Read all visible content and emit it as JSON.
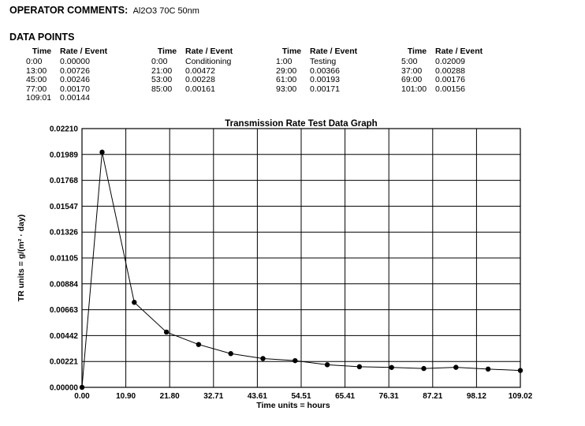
{
  "operator": {
    "label": "OPERATOR COMMENTS:",
    "value": "Al2O3  70C 50nm"
  },
  "data_points": {
    "title": "DATA POINTS",
    "headers": {
      "time": "Time",
      "rate": "Rate / Event"
    },
    "columns": [
      [
        {
          "time": "0:00",
          "rate": "0.00000"
        },
        {
          "time": "13:00",
          "rate": "0.00726"
        },
        {
          "time": "45:00",
          "rate": "0.00246"
        },
        {
          "time": "77:00",
          "rate": "0.00170"
        },
        {
          "time": "109:01",
          "rate": "0.00144"
        }
      ],
      [
        {
          "time": "0:00",
          "rate": "Conditioning"
        },
        {
          "time": "21:00",
          "rate": "0.00472"
        },
        {
          "time": "53:00",
          "rate": "0.00228"
        },
        {
          "time": "85:00",
          "rate": "0.00161"
        }
      ],
      [
        {
          "time": "1:00",
          "rate": "Testing"
        },
        {
          "time": "29:00",
          "rate": "0.00366"
        },
        {
          "time": "61:00",
          "rate": "0.00193"
        },
        {
          "time": "93:00",
          "rate": "0.00171"
        }
      ],
      [
        {
          "time": "5:00",
          "rate": "0.02009"
        },
        {
          "time": "37:00",
          "rate": "0.00288"
        },
        {
          "time": "69:00",
          "rate": "0.00176"
        },
        {
          "time": "101:00",
          "rate": "0.00156"
        }
      ]
    ]
  },
  "chart_data": {
    "type": "line",
    "title": "Transmission Rate Test Data Graph",
    "xlabel": "Time units = hours",
    "ylabel": "TR units = g/(m² · day)",
    "x_ticks": [
      "0.00",
      "10.90",
      "21.80",
      "32.71",
      "43.61",
      "54.51",
      "65.41",
      "76.31",
      "87.21",
      "98.12",
      "109.02"
    ],
    "y_ticks": [
      "0.00000",
      "0.00221",
      "0.00442",
      "0.00663",
      "0.00884",
      "0.01105",
      "0.01326",
      "0.01547",
      "0.01768",
      "0.01989",
      "0.02210"
    ],
    "xlim": [
      0,
      109.02
    ],
    "ylim": [
      0,
      0.0221
    ],
    "grid": true,
    "series": [
      {
        "x": [
          0,
          5,
          13,
          21,
          29,
          37,
          45,
          53,
          61,
          69,
          77,
          85,
          93,
          101,
          109.02
        ],
        "y": [
          0.0,
          0.02009,
          0.00726,
          0.00472,
          0.00366,
          0.00288,
          0.00246,
          0.00228,
          0.00193,
          0.00176,
          0.0017,
          0.00161,
          0.00171,
          0.00156,
          0.00144
        ]
      }
    ],
    "colors": {
      "line": "#000000",
      "grid": "#000000"
    }
  }
}
